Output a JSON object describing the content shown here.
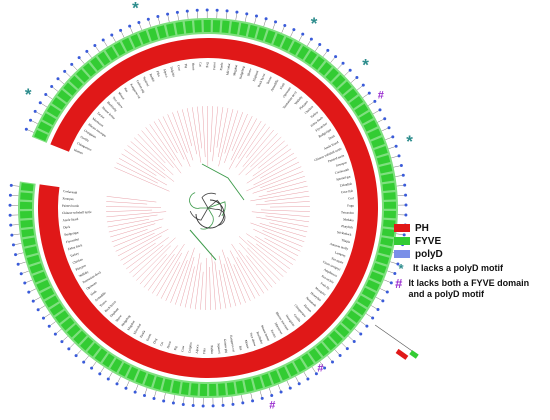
{
  "colors": {
    "ph": "#e01818",
    "fyve": "#33cc33",
    "polyd": "#3a5bd9",
    "star": "#2c8c8c",
    "hash": "#9a2fd0",
    "branch_green": "#3c9a4a",
    "branch_pink": "#e8a0a8",
    "text": "#111111"
  },
  "legend": {
    "items": [
      {
        "label": "PH",
        "color": "#e01818",
        "icon": "red-swatch"
      },
      {
        "label": "FYVE",
        "color": "#33cc33",
        "icon": "green-swatch"
      },
      {
        "label": "polyD",
        "color": "#3a5bd9",
        "icon": "blue-swatch"
      }
    ],
    "star_symbol": "*",
    "star_text": "It lacks a polyD motif",
    "hash_symbol": "#",
    "hash_text": "It lacks both a FYVE domain and a polyD motif"
  },
  "tree": {
    "leaf_labels": [
      "Human",
      "Chimpanzee",
      "Gorilla",
      "Orangutan",
      "Rhesus macaque",
      "Marmoset",
      "Tarsier",
      "Mouse lemur",
      "Bushbaby",
      "Tree shrew",
      "Mouse",
      "Rat",
      "Kangaroo rat",
      "Guinea pig",
      "Squirrel",
      "Rabbit",
      "Pika",
      "Alpaca",
      "Dolphin",
      "Cow",
      "Pig",
      "Horse",
      "Cat",
      "Dog",
      "Ferret",
      "Panda",
      "Microbat",
      "Megabat",
      "Hedgehog",
      "Shrew",
      "Elephant",
      "Rock hyrax",
      "Tenrec",
      "Armadillo",
      "Sloth",
      "Opossum",
      "Tasmanian devil",
      "Wallaby",
      "Platypus",
      "Chicken",
      "Turkey",
      "Zebra finch",
      "Flycatcher",
      "Budgerigar",
      "Duck",
      "Anole lizard",
      "Chinese softshell turtle",
      "Painted turtle",
      "Xenopus",
      "Coelacanth",
      "Spotted gar",
      "Zebrafish",
      "Cave fish",
      "Cod",
      "Fugu",
      "Tetraodon",
      "Medaka",
      "Platyfish",
      "Stickleback",
      "Tilapia",
      "Amazon molly",
      "Lamprey",
      "Sea squirt",
      "Ciona savignyi",
      "Amphioxus",
      "Sea urchin",
      "Fruit fly",
      "Mosquito",
      "Honeybee",
      "Nematode"
    ]
  }
}
